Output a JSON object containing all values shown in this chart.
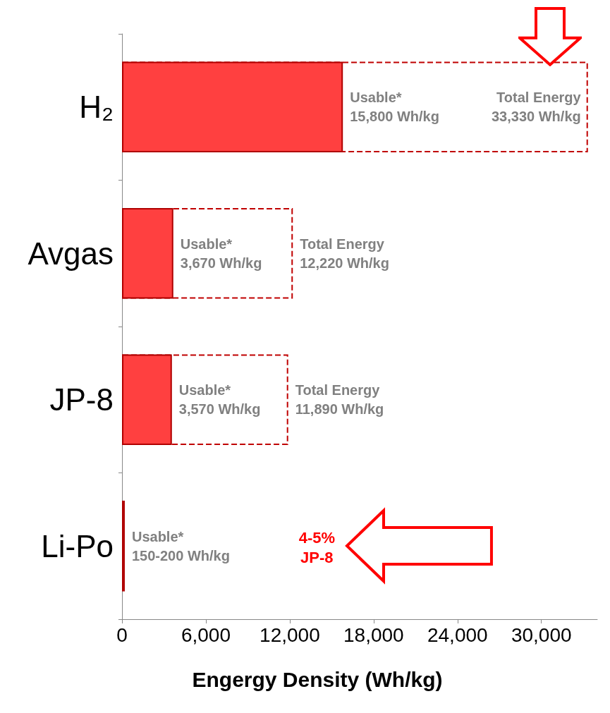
{
  "chart_data": {
    "type": "bar",
    "orientation": "horizontal",
    "xlabel": "Engergy Density (Wh/kg)",
    "categories": [
      "H₂",
      "Avgas",
      "JP-8",
      "Li-Po"
    ],
    "series": [
      {
        "color": "#ff4040",
        "values": [
          15800,
          3670,
          3570,
          200
        ],
        "value_labels": [
          "Usable*\n15,800 Wh/kg",
          "Usable*\n3,670 Wh/kg",
          "Usable*\n3,570 Wh/kg",
          "Usable*\n150-200 Wh/kg"
        ]
      },
      {
        "color": "#c00000",
        "line_style": "dashed",
        "values": [
          33330,
          12220,
          11890,
          null
        ],
        "value_labels": [
          "Total Energy\n33,330 Wh/kg",
          "Total Energy\n12,220 Wh/kg",
          "Total Energy\n11,890 Wh/kg",
          null
        ]
      }
    ],
    "xlim": [
      0,
      34000
    ],
    "xticks": [
      0,
      {
        "value": 6000,
        "label": "6,000"
      },
      {
        "value": 12000,
        "label": "12,000"
      },
      {
        "value": 18000,
        "label": "18,000"
      },
      {
        "value": 24000,
        "label": "24,000"
      },
      {
        "value": 30000,
        "label": "30,000"
      }
    ],
    "annotations": [
      "4-5%\nJP-8"
    ]
  }
}
